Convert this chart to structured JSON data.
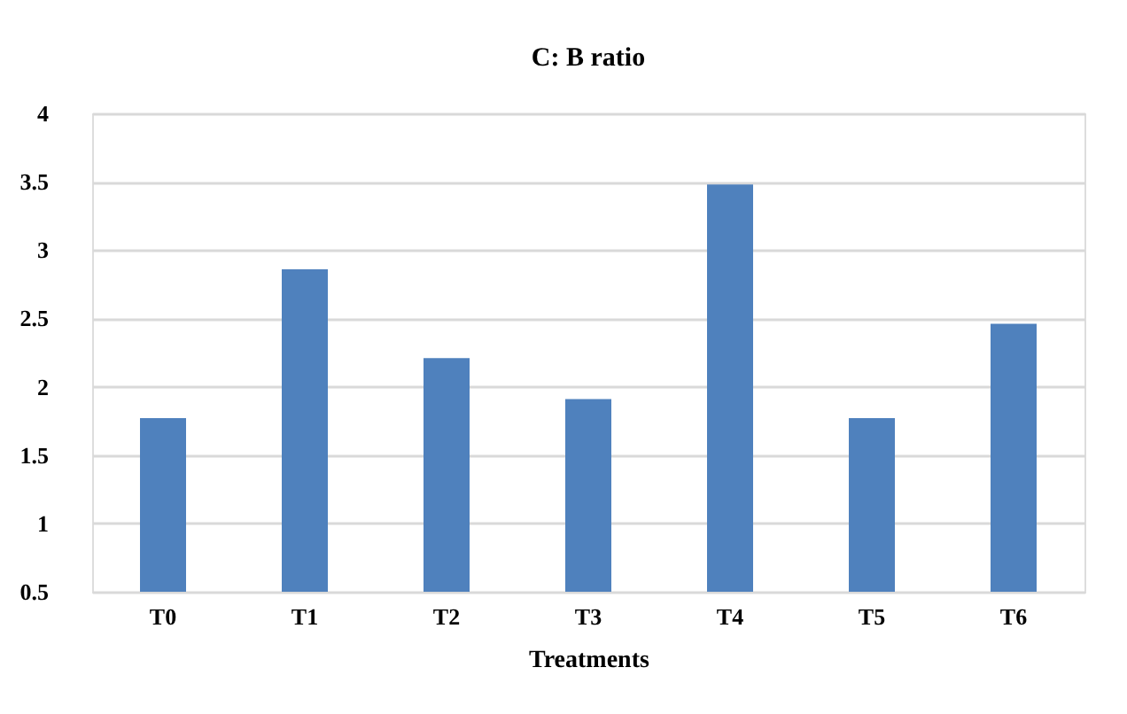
{
  "chart_data": {
    "type": "bar",
    "title": "C: B ratio",
    "xlabel": "Treatments",
    "categories": [
      "T0",
      "T1",
      "T2",
      "T3",
      "T4",
      "T5",
      "T6"
    ],
    "values": [
      1.77,
      2.86,
      2.21,
      1.91,
      3.48,
      1.77,
      2.46
    ],
    "color": "#4f81bd",
    "ylim": [
      0.5,
      4
    ],
    "yticks": [
      0.5,
      1,
      1.5,
      2,
      2.5,
      3,
      3.5,
      4
    ],
    "grid": "y"
  }
}
